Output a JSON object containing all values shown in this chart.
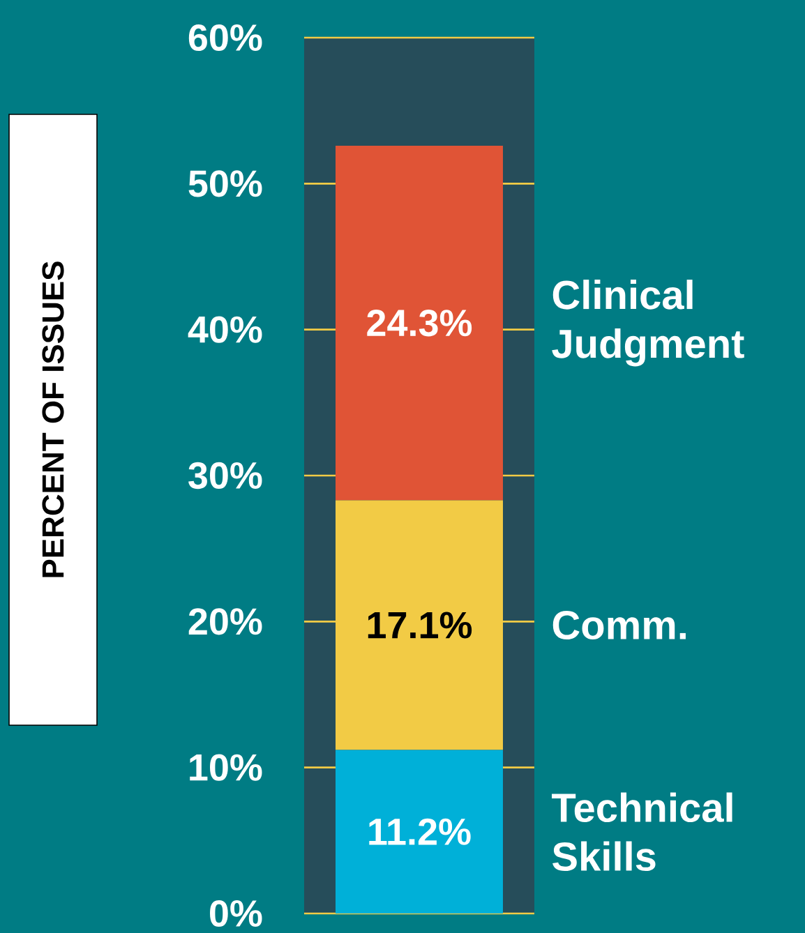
{
  "chart_data": {
    "type": "bar",
    "stacked": true,
    "ylabel": "PERCENT OF ISSUES",
    "categories": [
      null
    ],
    "series": [
      {
        "name": "Technical Skills",
        "color": "#00b0d8",
        "values": [
          11.2
        ],
        "value_labels": [
          "11.2%"
        ]
      },
      {
        "name": "Comm.",
        "color": "#f2cb45",
        "values": [
          17.1
        ],
        "value_labels": [
          "17.1%"
        ]
      },
      {
        "name": "Clinical Judgment",
        "color": "#e05436",
        "values": [
          24.3
        ],
        "value_labels": [
          "24.3%"
        ]
      }
    ],
    "ylim": [
      0,
      60
    ],
    "yticks": [
      {
        "value": 0,
        "label": "0%"
      },
      {
        "value": 10,
        "label": "10%"
      },
      {
        "value": 20,
        "label": "20%"
      },
      {
        "value": 30,
        "label": "30%"
      },
      {
        "value": 40,
        "label": "40%"
      },
      {
        "value": 50,
        "label": "50%"
      },
      {
        "value": 60,
        "label": "60%"
      }
    ],
    "grid": "y"
  }
}
